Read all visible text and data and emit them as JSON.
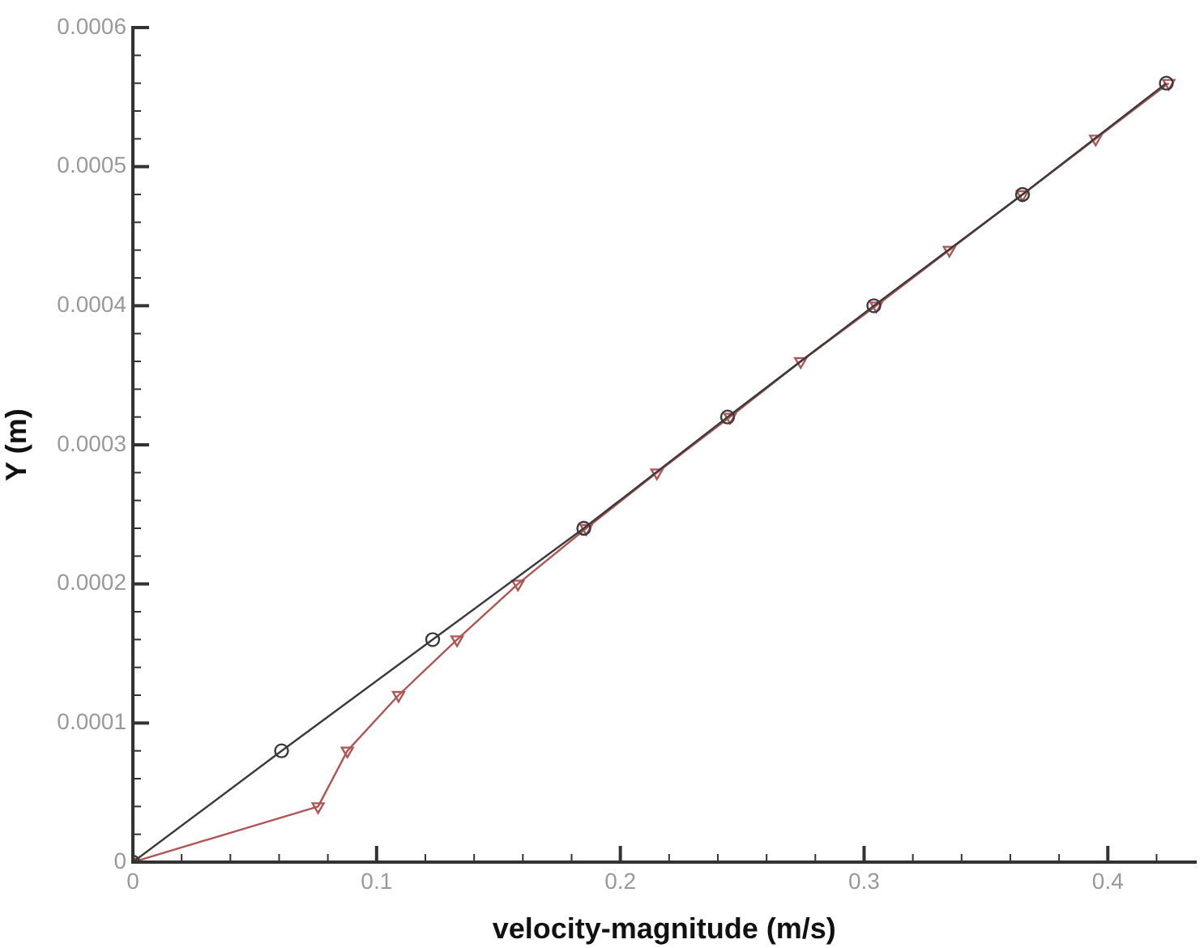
{
  "chart_data": {
    "type": "line",
    "xlabel": "velocity-magnitude (m/s)",
    "ylabel": "Y (m)",
    "xlim": [
      0,
      0.436
    ],
    "ylim": [
      0,
      0.0006
    ],
    "xticks": [
      0,
      {
        "value": 0.02,
        "label": null
      },
      {
        "value": 0.04,
        "label": null
      },
      {
        "value": 0.06,
        "label": null
      },
      {
        "value": 0.08,
        "label": null
      },
      0.1,
      {
        "value": 0.12,
        "label": null
      },
      {
        "value": 0.14,
        "label": null
      },
      {
        "value": 0.16,
        "label": null
      },
      {
        "value": 0.18,
        "label": null
      },
      0.2,
      {
        "value": 0.22,
        "label": null
      },
      {
        "value": 0.24,
        "label": null
      },
      {
        "value": 0.26,
        "label": null
      },
      {
        "value": 0.28,
        "label": null
      },
      0.3,
      {
        "value": 0.32,
        "label": null
      },
      {
        "value": 0.34,
        "label": null
      },
      {
        "value": 0.36,
        "label": null
      },
      {
        "value": 0.38,
        "label": null
      },
      0.4,
      {
        "value": 0.42,
        "label": null
      }
    ],
    "yticks": [
      0,
      {
        "value": 2e-05,
        "label": null
      },
      {
        "value": 4e-05,
        "label": null
      },
      {
        "value": 6e-05,
        "label": null
      },
      {
        "value": 8e-05,
        "label": null
      },
      0.0001,
      {
        "value": 0.00012,
        "label": null
      },
      {
        "value": 0.00014,
        "label": null
      },
      {
        "value": 0.00016,
        "label": null
      },
      {
        "value": 0.00018,
        "label": null
      },
      0.0002,
      {
        "value": 0.00022,
        "label": null
      },
      {
        "value": 0.00024,
        "label": null
      },
      {
        "value": 0.00026,
        "label": null
      },
      {
        "value": 0.00028,
        "label": null
      },
      0.0003,
      {
        "value": 0.00032,
        "label": null
      },
      {
        "value": 0.00034,
        "label": null
      },
      {
        "value": 0.00036,
        "label": null
      },
      {
        "value": 0.00038,
        "label": null
      },
      0.0004,
      {
        "value": 0.00042,
        "label": null
      },
      {
        "value": 0.00044,
        "label": null
      },
      {
        "value": 0.00046,
        "label": null
      },
      {
        "value": 0.00048,
        "label": null
      },
      0.0005,
      {
        "value": 0.00052,
        "label": null
      },
      {
        "value": 0.00054,
        "label": null
      },
      {
        "value": 0.00056,
        "label": null
      },
      {
        "value": 0.00058,
        "label": null
      },
      0.0006
    ],
    "grid": false,
    "legend": false,
    "line_style": "solid",
    "series": [
      {
        "color": "#3a3a3a",
        "marker": "circle",
        "x": [
          0,
          0.061,
          0.123,
          0.185,
          0.244,
          0.304,
          0.365,
          0.424
        ],
        "values": [
          0,
          8e-05,
          0.00016,
          0.00024,
          0.00032,
          0.0004,
          0.00048,
          0.00056
        ]
      },
      {
        "color": "#b05555",
        "marker": "triangle",
        "x": [
          0,
          0.076,
          0.088,
          0.109,
          0.133,
          0.158,
          0.186,
          0.215,
          0.245,
          0.274,
          0.305,
          0.335,
          0.365,
          0.395,
          0.425
        ],
        "values": [
          0,
          4e-05,
          8e-05,
          0.00012,
          0.00016,
          0.0002,
          0.00024,
          0.00028,
          0.00032,
          0.00036,
          0.0004,
          0.00044,
          0.00048,
          0.00052,
          0.00056
        ]
      }
    ]
  }
}
